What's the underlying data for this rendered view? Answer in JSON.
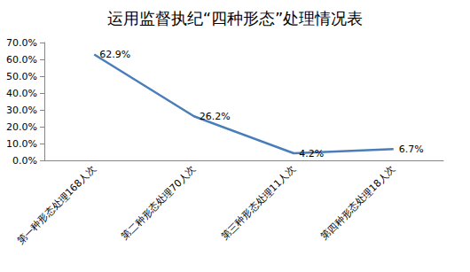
{
  "chart_data": {
    "type": "line",
    "title": "运用监督执纪“四种形态”处理情况表",
    "categories": [
      "第一种形态处理168人次",
      "第二种形态处理70人次",
      "第三种形态处理11人次",
      "第四种形态处理18人次"
    ],
    "values": [
      62.9,
      26.2,
      4.2,
      6.7
    ],
    "value_labels": [
      "62.9%",
      "26.2%",
      "4.2%",
      "6.7%"
    ],
    "color": "#4a7ebb",
    "ylim": [
      0,
      70
    ],
    "yticks": [
      {
        "value": 0,
        "label": "0.0%"
      },
      {
        "value": 10,
        "label": "10.0%"
      },
      {
        "value": 20,
        "label": "20.0%"
      },
      {
        "value": 30,
        "label": "30.0%"
      },
      {
        "value": 40,
        "label": "40.0%"
      },
      {
        "value": 50,
        "label": "50.0%"
      },
      {
        "value": 60,
        "label": "60.0%"
      },
      {
        "value": 70,
        "label": "70.0%"
      }
    ],
    "grid": false,
    "data_labels": true
  }
}
